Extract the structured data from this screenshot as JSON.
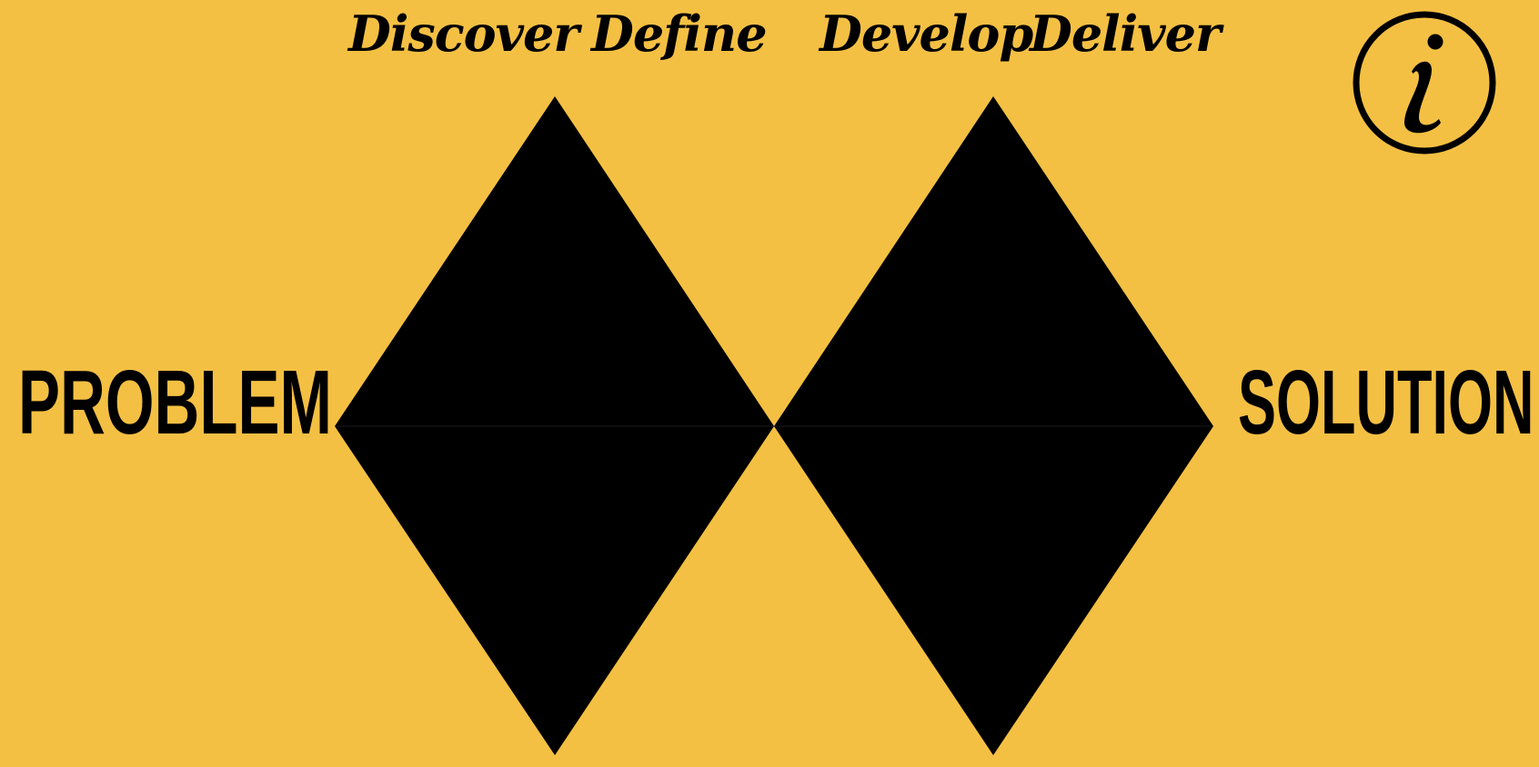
{
  "phases": {
    "discover": "Discover",
    "define": "Define",
    "develop": "Develop",
    "deliver": "Deliver"
  },
  "endpoints": {
    "problem": "PROBLEM",
    "solution": "SOLUTION"
  },
  "icons": {
    "info": "info-icon"
  },
  "colors": {
    "background": "#F4C043",
    "shapes": "#000000"
  }
}
